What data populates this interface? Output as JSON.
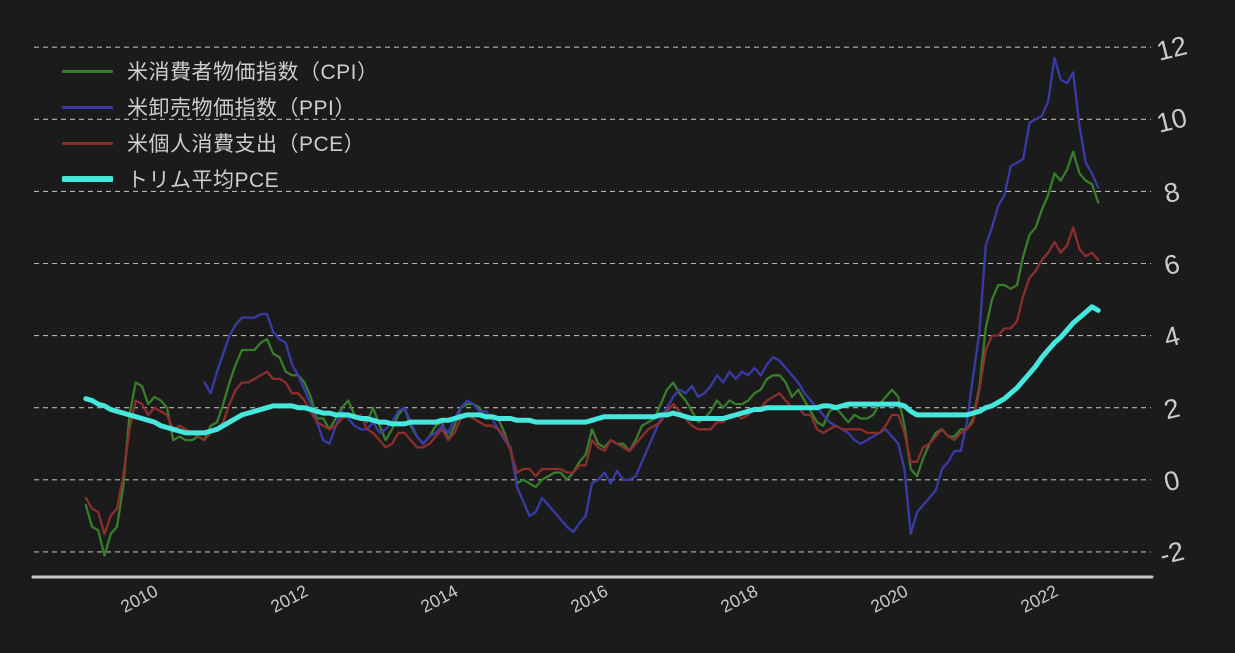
{
  "theme": {
    "background": "#1b1b1b",
    "text_color": "#cbcbcb",
    "grid_color": "#d0d0d0",
    "axis_color": "#c6c6c6"
  },
  "chart_data": {
    "type": "line",
    "title": "",
    "xlabel": "",
    "ylabel": "",
    "grid": "dashed-horizontal",
    "legend_position": "top-left",
    "x_axis": {
      "ticks": [
        "2010",
        "2012",
        "2014",
        "2016",
        "2018",
        "2020",
        "2022"
      ]
    },
    "y_axis": {
      "ticks": [
        -2,
        0,
        2,
        4,
        6,
        8,
        10,
        12
      ],
      "unit": "% YoY"
    },
    "x_unit": "year (monthly samples)",
    "series": [
      {
        "name": "米消費者物価指数（CPI）",
        "color": "#387d2c",
        "line_width": 2.3,
        "start": 2009.25,
        "step": 0.0833333,
        "values": [
          -0.7,
          -1.3,
          -1.4,
          -2.1,
          -1.5,
          -1.3,
          -0.2,
          1.8,
          2.7,
          2.6,
          2.1,
          2.3,
          2.2,
          2.0,
          1.1,
          1.2,
          1.1,
          1.1,
          1.2,
          1.1,
          1.5,
          1.6,
          2.1,
          2.7,
          3.2,
          3.6,
          3.6,
          3.6,
          3.8,
          3.9,
          3.5,
          3.4,
          3.0,
          2.9,
          2.9,
          2.7,
          2.3,
          1.7,
          1.7,
          1.4,
          1.7,
          2.0,
          2.2,
          1.8,
          1.7,
          1.6,
          2.0,
          1.5,
          1.1,
          1.4,
          1.8,
          2.0,
          1.5,
          1.2,
          1.0,
          1.2,
          1.5,
          1.6,
          1.1,
          1.5,
          2.0,
          2.1,
          2.1,
          2.0,
          1.7,
          1.7,
          1.7,
          1.3,
          0.8,
          -0.1,
          0.0,
          -0.1,
          -0.2,
          0.0,
          0.1,
          0.2,
          0.2,
          0.0,
          0.2,
          0.5,
          0.7,
          1.4,
          1.0,
          0.9,
          1.1,
          1.0,
          1.0,
          0.8,
          1.1,
          1.5,
          1.6,
          1.7,
          2.1,
          2.5,
          2.7,
          2.4,
          2.2,
          1.9,
          1.6,
          1.7,
          1.9,
          2.2,
          2.0,
          2.2,
          2.1,
          2.1,
          2.2,
          2.4,
          2.5,
          2.8,
          2.9,
          2.9,
          2.7,
          2.3,
          2.5,
          2.2,
          1.9,
          1.6,
          1.5,
          1.9,
          2.0,
          1.8,
          1.6,
          1.8,
          1.7,
          1.7,
          1.8,
          2.1,
          2.3,
          2.5,
          2.3,
          1.5,
          0.3,
          0.1,
          0.6,
          1.0,
          1.3,
          1.4,
          1.2,
          1.2,
          1.4,
          1.4,
          1.7,
          2.6,
          4.2,
          5.0,
          5.4,
          5.4,
          5.3,
          5.4,
          6.2,
          6.8,
          7.0,
          7.5,
          7.9,
          8.5,
          8.3,
          8.6,
          9.1,
          8.5,
          8.3,
          8.2,
          7.7
        ]
      },
      {
        "name": "米卸売物価指数（PPI）",
        "color": "#3a3aa8",
        "line_width": 2.3,
        "start": 2010.8333,
        "step": 0.0833333,
        "values": [
          2.7,
          2.4,
          3.0,
          3.5,
          4.0,
          4.3,
          4.5,
          4.5,
          4.5,
          4.6,
          4.6,
          4.1,
          3.9,
          3.8,
          3.2,
          2.9,
          2.5,
          2.1,
          1.6,
          1.1,
          1.0,
          1.5,
          1.9,
          1.7,
          1.5,
          1.4,
          1.4,
          1.6,
          1.3,
          1.4,
          1.6,
          1.9,
          2.0,
          1.6,
          1.2,
          1.0,
          1.2,
          1.3,
          1.5,
          1.3,
          1.7,
          2.0,
          2.2,
          2.1,
          1.9,
          1.9,
          1.7,
          1.4,
          1.1,
          0.9,
          -0.2,
          -0.6,
          -1.0,
          -0.9,
          -0.5,
          -0.7,
          -0.9,
          -1.1,
          -1.3,
          -1.45,
          -1.2,
          -1.0,
          -0.1,
          0.0,
          0.2,
          -0.1,
          0.25,
          0.0,
          0.0,
          0.1,
          0.5,
          0.9,
          1.3,
          1.7,
          2.0,
          2.3,
          2.5,
          2.4,
          2.6,
          2.3,
          2.4,
          2.6,
          2.9,
          2.7,
          3.0,
          2.8,
          3.0,
          2.9,
          3.1,
          2.9,
          3.2,
          3.4,
          3.3,
          3.1,
          2.9,
          2.7,
          2.4,
          2.2,
          2.0,
          1.8,
          1.6,
          1.5,
          1.4,
          1.3,
          1.1,
          1.0,
          1.1,
          1.2,
          1.3,
          1.4,
          1.2,
          1.0,
          0.3,
          -1.5,
          -0.9,
          -0.7,
          -0.5,
          -0.3,
          0.3,
          0.5,
          0.8,
          0.8,
          1.6,
          2.9,
          4.1,
          6.5,
          7.0,
          7.6,
          7.9,
          8.7,
          8.8,
          8.9,
          9.9,
          10.0,
          10.1,
          10.5,
          11.7,
          11.1,
          11.0,
          11.3,
          9.8,
          8.8,
          8.5,
          8.1
        ]
      },
      {
        "name": "米個人消費支出（PCE）",
        "color": "#8d2e2e",
        "line_width": 2.3,
        "start": 2009.25,
        "step": 0.0833333,
        "values": [
          -0.5,
          -0.8,
          -0.9,
          -1.5,
          -1.0,
          -0.8,
          0.1,
          1.4,
          2.2,
          2.1,
          1.8,
          2.0,
          1.9,
          1.8,
          1.4,
          1.5,
          1.4,
          1.3,
          1.2,
          1.1,
          1.3,
          1.4,
          1.6,
          2.1,
          2.5,
          2.7,
          2.7,
          2.8,
          2.9,
          3.0,
          2.8,
          2.8,
          2.7,
          2.4,
          2.4,
          2.2,
          1.9,
          1.6,
          1.5,
          1.4,
          1.5,
          1.7,
          1.8,
          1.7,
          1.8,
          1.4,
          1.3,
          1.1,
          0.9,
          1.0,
          1.3,
          1.3,
          1.1,
          0.9,
          0.9,
          1.0,
          1.2,
          1.4,
          1.1,
          1.3,
          1.7,
          1.8,
          1.7,
          1.6,
          1.5,
          1.5,
          1.4,
          1.2,
          0.8,
          0.2,
          0.3,
          0.3,
          0.1,
          0.3,
          0.3,
          0.3,
          0.3,
          0.2,
          0.2,
          0.4,
          0.4,
          1.1,
          0.9,
          0.8,
          1.1,
          1.0,
          0.9,
          0.8,
          1.0,
          1.2,
          1.4,
          1.5,
          1.6,
          1.9,
          2.1,
          1.9,
          1.7,
          1.5,
          1.4,
          1.4,
          1.4,
          1.6,
          1.6,
          1.8,
          1.8,
          1.7,
          1.8,
          2.0,
          2.0,
          2.2,
          2.3,
          2.4,
          2.2,
          2.0,
          2.0,
          1.8,
          1.8,
          1.4,
          1.3,
          1.4,
          1.5,
          1.4,
          1.4,
          1.4,
          1.4,
          1.3,
          1.3,
          1.3,
          1.5,
          1.8,
          1.8,
          1.3,
          0.5,
          0.5,
          0.9,
          1.0,
          1.2,
          1.4,
          1.2,
          1.1,
          1.3,
          1.4,
          1.6,
          2.5,
          3.6,
          4.0,
          4.0,
          4.2,
          4.2,
          4.4,
          5.1,
          5.6,
          5.8,
          6.1,
          6.3,
          6.6,
          6.3,
          6.5,
          7.0,
          6.4,
          6.2,
          6.3,
          6.1
        ]
      },
      {
        "name": "トリム平均PCE",
        "color": "#46e8de",
        "line_width": 5,
        "start": 2009.25,
        "step": 0.0833333,
        "values": [
          2.25,
          2.2,
          2.1,
          2.05,
          1.95,
          1.9,
          1.85,
          1.8,
          1.75,
          1.7,
          1.65,
          1.6,
          1.5,
          1.45,
          1.4,
          1.35,
          1.3,
          1.3,
          1.3,
          1.3,
          1.35,
          1.4,
          1.5,
          1.6,
          1.7,
          1.8,
          1.85,
          1.9,
          1.95,
          2.0,
          2.05,
          2.05,
          2.05,
          2.05,
          2.0,
          2.0,
          1.95,
          1.9,
          1.85,
          1.85,
          1.8,
          1.8,
          1.8,
          1.75,
          1.7,
          1.7,
          1.65,
          1.6,
          1.6,
          1.55,
          1.55,
          1.55,
          1.6,
          1.6,
          1.6,
          1.6,
          1.6,
          1.65,
          1.65,
          1.7,
          1.75,
          1.8,
          1.8,
          1.8,
          1.75,
          1.75,
          1.7,
          1.7,
          1.7,
          1.65,
          1.65,
          1.65,
          1.6,
          1.6,
          1.6,
          1.6,
          1.6,
          1.6,
          1.6,
          1.6,
          1.6,
          1.65,
          1.7,
          1.75,
          1.75,
          1.75,
          1.75,
          1.75,
          1.75,
          1.75,
          1.75,
          1.75,
          1.8,
          1.8,
          1.85,
          1.8,
          1.75,
          1.7,
          1.7,
          1.7,
          1.7,
          1.7,
          1.7,
          1.75,
          1.8,
          1.85,
          1.9,
          1.95,
          1.95,
          2.0,
          2.0,
          2.0,
          2.0,
          2.0,
          2.0,
          2.0,
          2.0,
          2.0,
          2.05,
          2.05,
          2.0,
          2.05,
          2.1,
          2.1,
          2.1,
          2.1,
          2.1,
          2.1,
          2.1,
          2.1,
          2.1,
          2.05,
          1.9,
          1.8,
          1.8,
          1.8,
          1.8,
          1.8,
          1.8,
          1.8,
          1.8,
          1.8,
          1.85,
          1.9,
          2.0,
          2.05,
          2.15,
          2.25,
          2.4,
          2.55,
          2.75,
          2.95,
          3.15,
          3.4,
          3.6,
          3.8,
          3.95,
          4.15,
          4.35,
          4.5,
          4.65,
          4.8,
          4.7
        ]
      }
    ]
  }
}
